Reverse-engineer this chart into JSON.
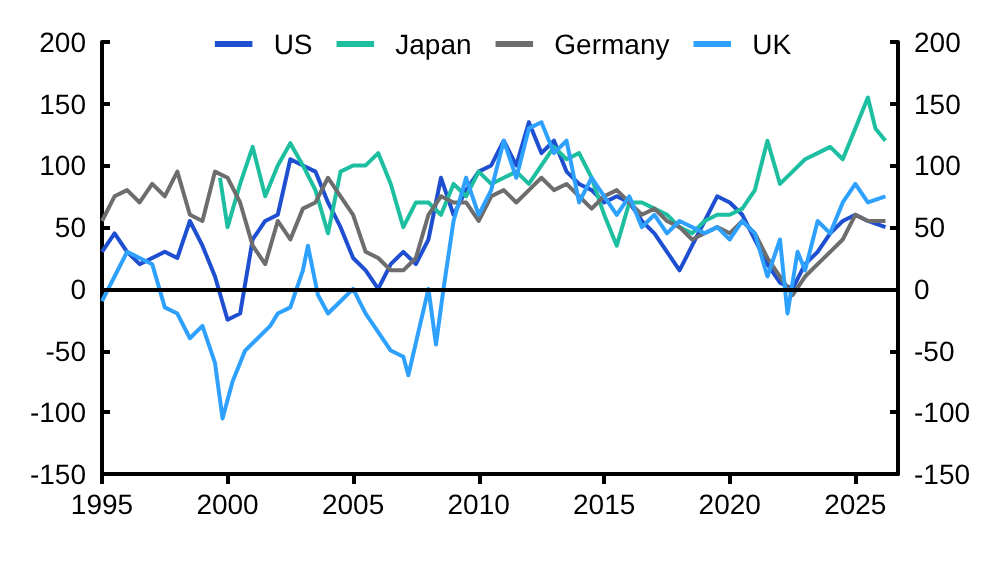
{
  "chart_data": {
    "type": "line",
    "xlim": [
      1995,
      2026.7
    ],
    "xticks": [
      1995,
      2000,
      2005,
      2010,
      2015,
      2020,
      2025
    ],
    "ylim": [
      -150,
      200
    ],
    "yticks": [
      -150,
      -100,
      -50,
      0,
      50,
      100,
      150,
      200
    ],
    "y2lim": [
      -150,
      200
    ],
    "y2ticks": [
      -150,
      -100,
      -50,
      0,
      50,
      100,
      150,
      200
    ],
    "grid": false,
    "legend": "top",
    "marker": "none",
    "line_style": "solid",
    "ref_lines": [
      {
        "axis": "y",
        "value": 0,
        "color": "#000000"
      }
    ],
    "series": [
      {
        "name": "US",
        "color": "#1f4fd1",
        "x": [
          1995,
          1995.5,
          1996,
          1996.5,
          1997,
          1997.5,
          1998,
          1998.5,
          1999,
          1999.5,
          2000,
          2000.5,
          2001,
          2001.5,
          2002,
          2002.5,
          2003,
          2003.5,
          2004,
          2004.5,
          2005,
          2005.5,
          2006,
          2006.5,
          2007,
          2007.5,
          2008,
          2008.5,
          2009,
          2009.5,
          2010,
          2010.5,
          2011,
          2011.5,
          2012,
          2012.5,
          2013,
          2013.5,
          2014,
          2014.5,
          2015,
          2015.5,
          2016,
          2016.5,
          2017,
          2017.5,
          2018,
          2018.5,
          2019,
          2019.5,
          2020,
          2020.5,
          2021,
          2021.5,
          2022,
          2022.5,
          2023,
          2023.5,
          2024,
          2024.5,
          2025,
          2025.5,
          2026.2
        ],
        "values": [
          30,
          45,
          30,
          20,
          25,
          30,
          25,
          55,
          35,
          10,
          -25,
          -20,
          40,
          55,
          60,
          105,
          100,
          95,
          70,
          50,
          25,
          15,
          0,
          20,
          30,
          20,
          40,
          90,
          60,
          80,
          95,
          100,
          120,
          100,
          135,
          110,
          120,
          95,
          85,
          80,
          70,
          75,
          70,
          55,
          45,
          30,
          15,
          35,
          55,
          75,
          70,
          60,
          40,
          20,
          5,
          0,
          20,
          30,
          45,
          55,
          60,
          55,
          50
        ]
      },
      {
        "name": "Japan",
        "color": "#1dbfa0",
        "x": [
          1999.7,
          2000,
          2000.5,
          2001,
          2001.5,
          2002,
          2002.5,
          2003,
          2003.5,
          2004,
          2004.5,
          2005,
          2005.5,
          2006,
          2006.5,
          2007,
          2007.5,
          2008,
          2008.5,
          2009,
          2009.5,
          2010,
          2010.5,
          2011,
          2011.5,
          2012,
          2012.5,
          2013,
          2013.5,
          2014,
          2014.5,
          2015,
          2015.5,
          2016,
          2016.5,
          2017,
          2017.5,
          2018,
          2018.5,
          2019,
          2019.5,
          2020,
          2020.5,
          2021,
          2021.5,
          2022,
          2022.5,
          2023,
          2023.5,
          2024,
          2024.5,
          2025,
          2025.5,
          2025.8,
          2026.2
        ],
        "values": [
          90,
          50,
          85,
          115,
          75,
          100,
          118,
          100,
          80,
          45,
          95,
          100,
          100,
          110,
          85,
          50,
          70,
          70,
          60,
          85,
          75,
          95,
          85,
          90,
          95,
          85,
          100,
          115,
          105,
          110,
          90,
          60,
          35,
          70,
          70,
          65,
          60,
          50,
          45,
          55,
          60,
          60,
          65,
          80,
          120,
          85,
          95,
          105,
          110,
          115,
          105,
          130,
          155,
          130,
          120
        ]
      },
      {
        "name": "Germany",
        "color": "#6d6d6d",
        "x": [
          1995,
          1995.5,
          1996,
          1996.5,
          1997,
          1997.5,
          1998,
          1998.5,
          1999,
          1999.5,
          2000,
          2000.5,
          2001,
          2001.5,
          2002,
          2002.5,
          2003,
          2003.5,
          2004,
          2004.5,
          2005,
          2005.5,
          2006,
          2006.5,
          2007,
          2007.5,
          2008,
          2008.5,
          2009,
          2009.5,
          2010,
          2010.5,
          2011,
          2011.5,
          2012,
          2012.5,
          2013,
          2013.5,
          2014,
          2014.5,
          2015,
          2015.5,
          2016,
          2016.5,
          2017,
          2017.5,
          2018,
          2018.5,
          2019,
          2019.5,
          2020,
          2020.5,
          2021,
          2021.5,
          2022,
          2022.5,
          2023,
          2023.5,
          2024,
          2024.5,
          2025,
          2025.5,
          2026.2
        ],
        "values": [
          55,
          75,
          80,
          70,
          85,
          75,
          95,
          60,
          55,
          95,
          90,
          70,
          35,
          20,
          55,
          40,
          65,
          70,
          90,
          75,
          60,
          30,
          25,
          15,
          15,
          25,
          60,
          75,
          70,
          70,
          55,
          75,
          80,
          70,
          80,
          90,
          80,
          85,
          75,
          65,
          75,
          80,
          70,
          60,
          65,
          55,
          50,
          40,
          45,
          50,
          45,
          55,
          45,
          25,
          10,
          -5,
          10,
          20,
          30,
          40,
          60,
          55,
          55
        ]
      },
      {
        "name": "UK",
        "color": "#2ea1ff",
        "x": [
          1995,
          1995.5,
          1996,
          1996.5,
          1997,
          1997.5,
          1998,
          1998.5,
          1999,
          1999.5,
          1999.8,
          2000.2,
          2000.7,
          2001.2,
          2001.7,
          2002,
          2002.5,
          2003,
          2003.2,
          2003.6,
          2004,
          2004.5,
          2005,
          2005.5,
          2006,
          2006.5,
          2007,
          2007.2,
          2007.6,
          2008,
          2008.3,
          2008.6,
          2009,
          2009.5,
          2010,
          2010.5,
          2011,
          2011.5,
          2012,
          2012.5,
          2013,
          2013.5,
          2014,
          2014.5,
          2015,
          2015.5,
          2016,
          2016.5,
          2017,
          2017.5,
          2018,
          2018.5,
          2019,
          2019.5,
          2020,
          2020.5,
          2021,
          2021.5,
          2022,
          2022.3,
          2022.7,
          2023,
          2023.5,
          2024,
          2024.5,
          2025,
          2025.5,
          2026.2
        ],
        "values": [
          -10,
          10,
          30,
          25,
          20,
          -15,
          -20,
          -40,
          -30,
          -60,
          -105,
          -75,
          -50,
          -40,
          -30,
          -20,
          -15,
          15,
          35,
          -5,
          -20,
          -10,
          0,
          -20,
          -35,
          -50,
          -55,
          -70,
          -35,
          0,
          -45,
          0,
          55,
          90,
          60,
          80,
          120,
          90,
          130,
          135,
          110,
          120,
          70,
          90,
          75,
          60,
          75,
          50,
          60,
          45,
          55,
          50,
          45,
          50,
          40,
          55,
          45,
          10,
          40,
          -20,
          30,
          15,
          55,
          45,
          70,
          85,
          70,
          75
        ]
      }
    ]
  }
}
